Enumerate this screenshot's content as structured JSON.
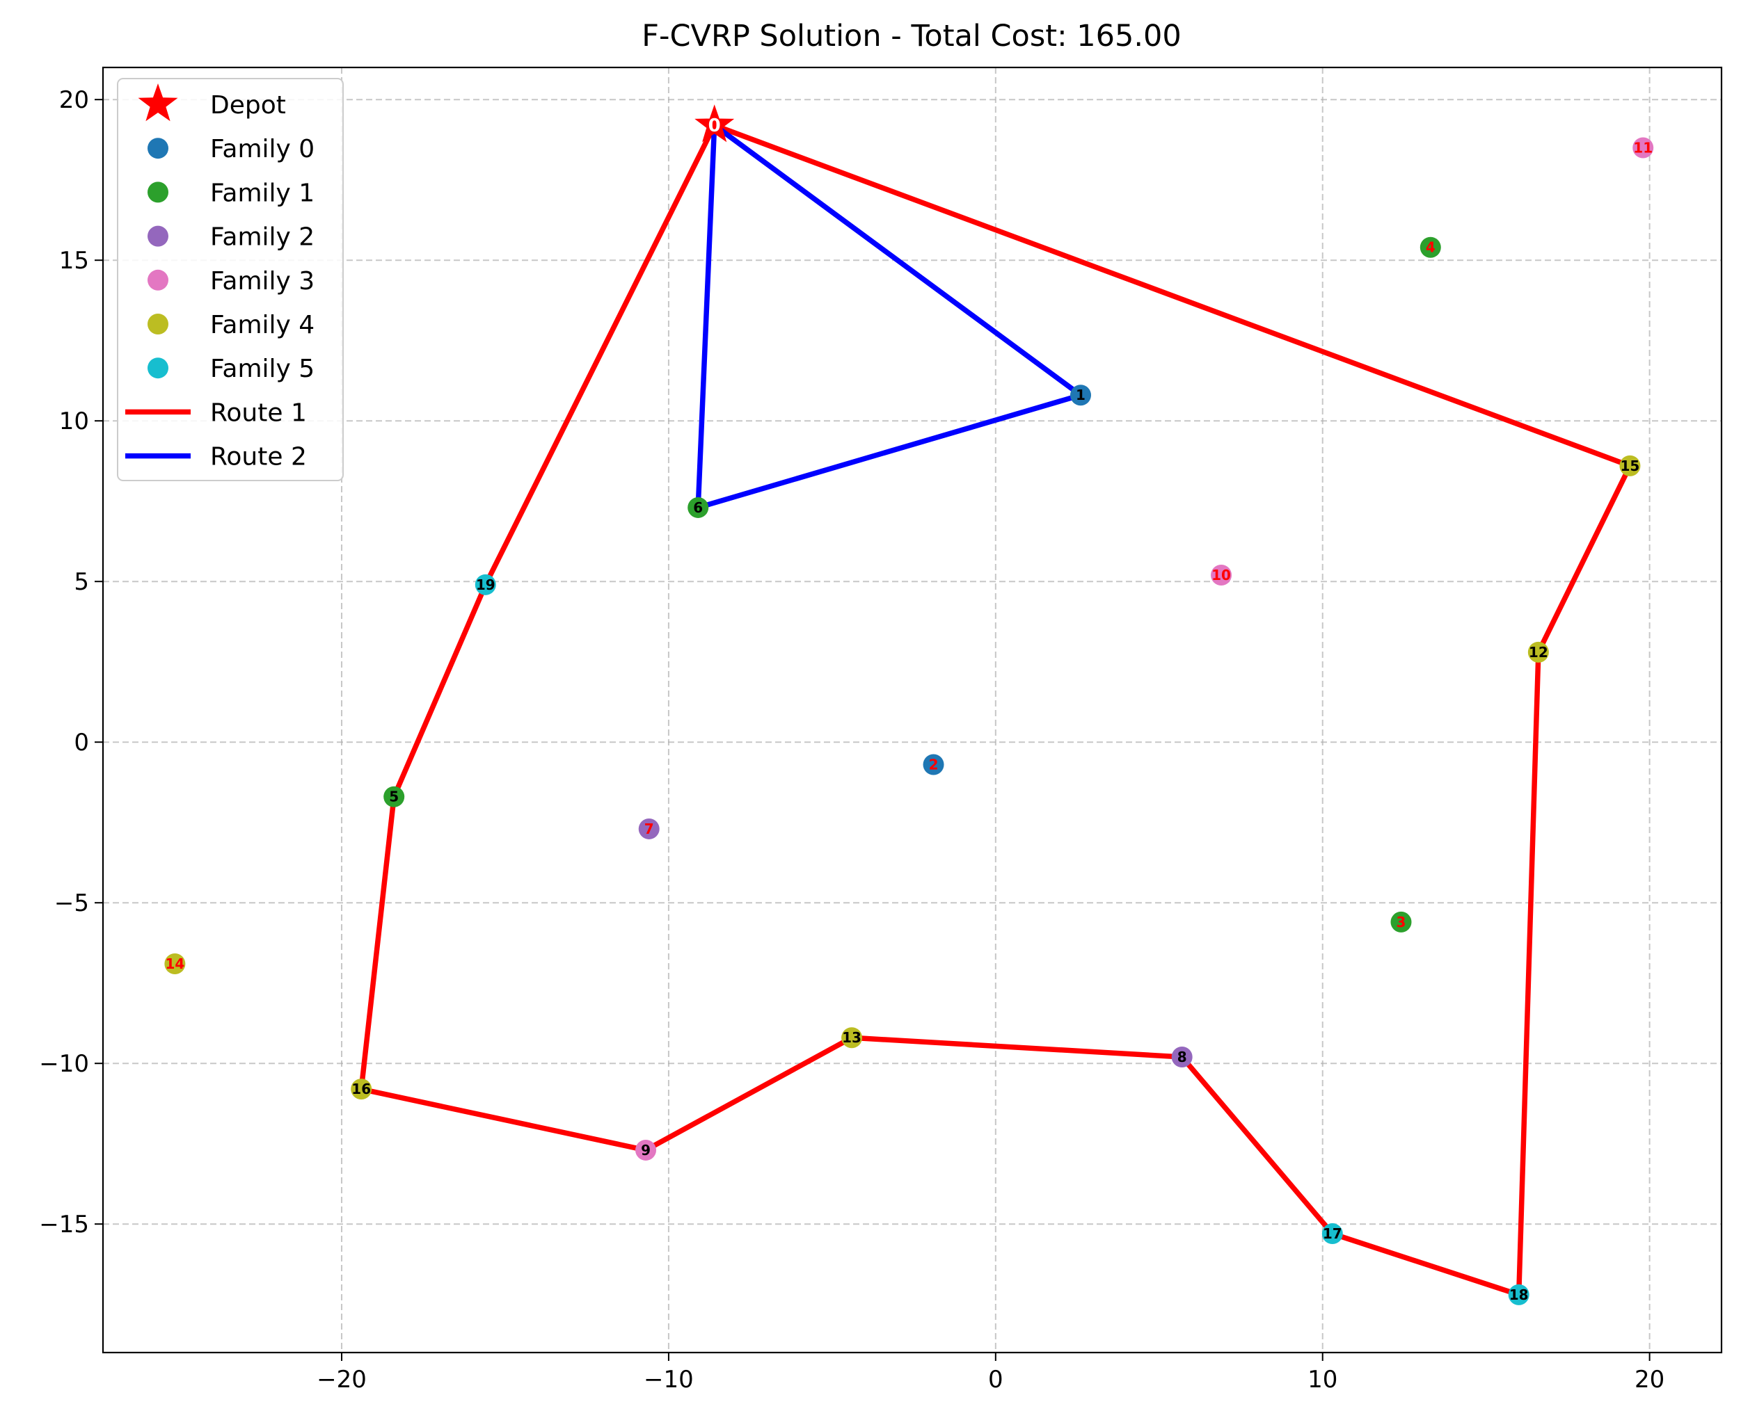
{
  "chart_data": {
    "type": "scatter",
    "title": "F-CVRP Solution - Total Cost: 165.00",
    "xlabel": "",
    "ylabel": "",
    "xlim": [
      -27.3,
      22.2
    ],
    "ylim": [
      -19.0,
      21.0
    ],
    "x_ticks": [
      -20,
      -10,
      0,
      10,
      20
    ],
    "y_ticks": [
      -15,
      -10,
      -5,
      0,
      5,
      10,
      15,
      20
    ],
    "grid": true,
    "legend_position": "upper-left",
    "depot": {
      "id": 0,
      "label": "0",
      "name": "Depot",
      "x": -8.6,
      "y": 19.2,
      "color": "#ff0000",
      "marker": "star"
    },
    "families": [
      {
        "name": "Family 0",
        "color": "#1f77b4"
      },
      {
        "name": "Family 1",
        "color": "#2ca02c"
      },
      {
        "name": "Family 2",
        "color": "#9467bd"
      },
      {
        "name": "Family 3",
        "color": "#e377c2"
      },
      {
        "name": "Family 4",
        "color": "#bcbd22"
      },
      {
        "name": "Family 5",
        "color": "#17becf"
      }
    ],
    "nodes": [
      {
        "id": 1,
        "label": "1",
        "x": 2.6,
        "y": 10.8,
        "family": 0,
        "visited": true
      },
      {
        "id": 2,
        "label": "2",
        "x": -1.9,
        "y": -0.7,
        "family": 0,
        "visited": false
      },
      {
        "id": 3,
        "label": "3",
        "x": 12.4,
        "y": -5.6,
        "family": 1,
        "visited": false
      },
      {
        "id": 4,
        "label": "4",
        "x": 13.3,
        "y": 15.4,
        "family": 1,
        "visited": false
      },
      {
        "id": 5,
        "label": "5",
        "x": -18.4,
        "y": -1.7,
        "family": 1,
        "visited": true
      },
      {
        "id": 6,
        "label": "6",
        "x": -9.1,
        "y": 7.3,
        "family": 1,
        "visited": true
      },
      {
        "id": 7,
        "label": "7",
        "x": -10.6,
        "y": -2.7,
        "family": 2,
        "visited": false
      },
      {
        "id": 8,
        "label": "8",
        "x": 5.7,
        "y": -9.8,
        "family": 2,
        "visited": true
      },
      {
        "id": 9,
        "label": "9",
        "x": -10.7,
        "y": -12.7,
        "family": 3,
        "visited": true
      },
      {
        "id": 10,
        "label": "10",
        "x": 6.9,
        "y": 5.2,
        "family": 3,
        "visited": false
      },
      {
        "id": 11,
        "label": "11",
        "x": 19.8,
        "y": 18.5,
        "family": 3,
        "visited": false
      },
      {
        "id": 12,
        "label": "12",
        "x": 16.6,
        "y": 2.8,
        "family": 4,
        "visited": true
      },
      {
        "id": 13,
        "label": "13",
        "x": -4.4,
        "y": -9.2,
        "family": 4,
        "visited": true
      },
      {
        "id": 14,
        "label": "14",
        "x": -25.1,
        "y": -6.9,
        "family": 4,
        "visited": false
      },
      {
        "id": 15,
        "label": "15",
        "x": 19.4,
        "y": 8.6,
        "family": 4,
        "visited": true
      },
      {
        "id": 16,
        "label": "16",
        "x": -19.4,
        "y": -10.8,
        "family": 4,
        "visited": true
      },
      {
        "id": 17,
        "label": "17",
        "x": 10.3,
        "y": -15.3,
        "family": 5,
        "visited": true
      },
      {
        "id": 18,
        "label": "18",
        "x": 16.0,
        "y": -17.2,
        "family": 5,
        "visited": true
      },
      {
        "id": 19,
        "label": "19",
        "x": -15.6,
        "y": 4.9,
        "family": 5,
        "visited": true
      }
    ],
    "routes": [
      {
        "name": "Route 1",
        "color": "#ff0000",
        "path": [
          0,
          19,
          5,
          16,
          9,
          13,
          8,
          17,
          18,
          12,
          15,
          0
        ]
      },
      {
        "name": "Route 2",
        "color": "#0000ff",
        "path": [
          0,
          6,
          1,
          0
        ]
      }
    ]
  }
}
